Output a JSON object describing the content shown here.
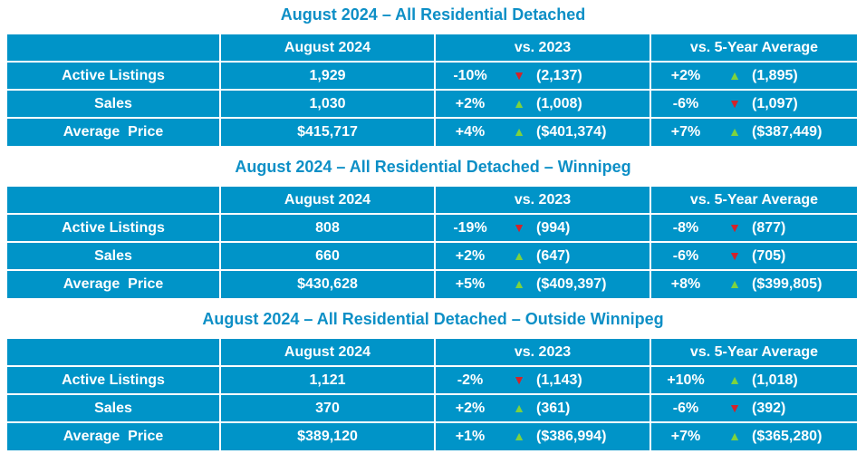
{
  "colors": {
    "title": "#0d8fc6",
    "table_bg": "#0094c8",
    "up_arrow": "#7ed23e",
    "down_arrow": "#d2232a"
  },
  "icons": {
    "up": "▲",
    "down": "▼"
  },
  "tables": [
    {
      "title": "August 2024 – All Residential Detached",
      "headers": [
        "",
        "August 2024",
        "vs. 2023",
        "vs. 5-Year Average"
      ],
      "rows": [
        {
          "label": "Active Listings",
          "value": "1,929",
          "vs_prev": {
            "pct": "-10%",
            "dir": "down",
            "value": "(2,137)"
          },
          "vs_avg": {
            "pct": "+2%",
            "dir": "up",
            "value": "(1,895)"
          }
        },
        {
          "label": "Sales",
          "value": "1,030",
          "vs_prev": {
            "pct": "+2%",
            "dir": "up",
            "value": "(1,008)"
          },
          "vs_avg": {
            "pct": "-6%",
            "dir": "down",
            "value": "(1,097)"
          }
        },
        {
          "label": "Average  Price",
          "value": "$415,717",
          "vs_prev": {
            "pct": "+4%",
            "dir": "up",
            "value": "($401,374)"
          },
          "vs_avg": {
            "pct": "+7%",
            "dir": "up",
            "value": "($387,449)"
          }
        }
      ]
    },
    {
      "title": "August 2024 – All Residential Detached – Winnipeg",
      "headers": [
        "",
        "August 2024",
        "vs. 2023",
        "vs. 5-Year Average"
      ],
      "rows": [
        {
          "label": "Active Listings",
          "value": "808",
          "vs_prev": {
            "pct": "-19%",
            "dir": "down",
            "value": "(994)"
          },
          "vs_avg": {
            "pct": "-8%",
            "dir": "down",
            "value": "(877)"
          }
        },
        {
          "label": "Sales",
          "value": "660",
          "vs_prev": {
            "pct": "+2%",
            "dir": "up",
            "value": "(647)"
          },
          "vs_avg": {
            "pct": "-6%",
            "dir": "down",
            "value": "(705)"
          }
        },
        {
          "label": "Average  Price",
          "value": "$430,628",
          "vs_prev": {
            "pct": "+5%",
            "dir": "up",
            "value": "($409,397)"
          },
          "vs_avg": {
            "pct": "+8%",
            "dir": "up",
            "value": "($399,805)"
          }
        }
      ]
    },
    {
      "title": "August 2024 – All Residential Detached – Outside Winnipeg",
      "headers": [
        "",
        "August 2024",
        "vs. 2023",
        "vs. 5-Year Average"
      ],
      "rows": [
        {
          "label": "Active Listings",
          "value": "1,121",
          "vs_prev": {
            "pct": "-2%",
            "dir": "down",
            "value": "(1,143)"
          },
          "vs_avg": {
            "pct": "+10%",
            "dir": "up",
            "value": "(1,018)"
          }
        },
        {
          "label": "Sales",
          "value": "370",
          "vs_prev": {
            "pct": "+2%",
            "dir": "up",
            "value": "(361)"
          },
          "vs_avg": {
            "pct": "-6%",
            "dir": "down",
            "value": "(392)"
          }
        },
        {
          "label": "Average  Price",
          "value": "$389,120",
          "vs_prev": {
            "pct": "+1%",
            "dir": "up",
            "value": "($386,994)"
          },
          "vs_avg": {
            "pct": "+7%",
            "dir": "up",
            "value": "($365,280)"
          }
        }
      ]
    }
  ]
}
